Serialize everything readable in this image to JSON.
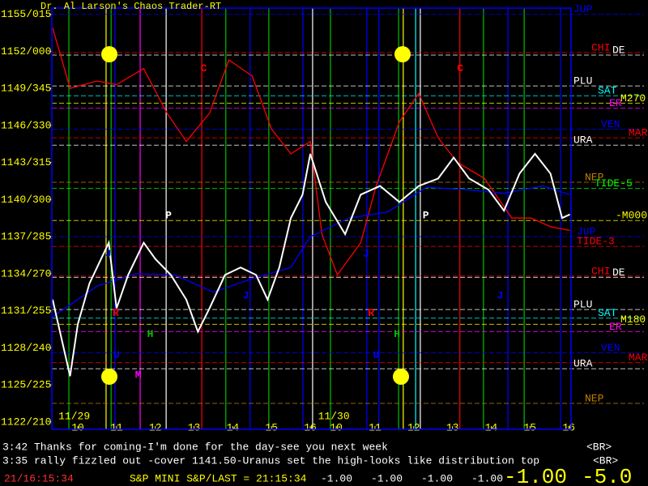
{
  "chart_data": {
    "type": "line",
    "title": "Dr. Al Larson's Chaos Trader-RT",
    "xlim": [
      9.33,
      22.73
    ],
    "xticks": [
      10,
      11,
      12,
      13,
      14,
      15,
      16,
      {
        "value": 16.67,
        "label": "10"
      },
      {
        "value": 17.67,
        "label": "11"
      },
      {
        "value": 18.67,
        "label": "12"
      },
      {
        "value": 19.67,
        "label": "13"
      },
      {
        "value": 20.67,
        "label": "14"
      },
      {
        "value": 21.67,
        "label": "15"
      },
      {
        "value": 22.67,
        "label": "16"
      }
    ],
    "ylim": [
      1121.4,
      1155.5
    ],
    "yticks": [
      {
        "value": 1155,
        "label": "1155/015"
      },
      {
        "value": 1152,
        "label": "1152/000"
      },
      {
        "value": 1149,
        "label": "1149/345"
      },
      {
        "value": 1146,
        "label": "1146/330"
      },
      {
        "value": 1143,
        "label": "1143/315"
      },
      {
        "value": 1140,
        "label": "1140/300"
      },
      {
        "value": 1137,
        "label": "1137/285"
      },
      {
        "value": 1134,
        "label": "1134/270"
      },
      {
        "value": 1131,
        "label": "1131/255"
      },
      {
        "value": 1128,
        "label": "1128/240"
      },
      {
        "value": 1125,
        "label": "1125/225"
      },
      {
        "value": 1122,
        "label": "1122/210"
      }
    ],
    "day_labels": [
      {
        "text": "11/29",
        "x": 9.5
      },
      {
        "text": "11/30",
        "x": 16.2
      }
    ],
    "series": [
      {
        "color": "#ff0000",
        "x": [
          9.35,
          9.8,
          10.5,
          11,
          11.7,
          12.3,
          12.8,
          13.4,
          13.9,
          14.5,
          15,
          15.5,
          16,
          16.3,
          16.7,
          17.3,
          17.7,
          18.3,
          18.8,
          19.3,
          19.8,
          20.5,
          21.2,
          21.7,
          22.2,
          22.7
        ],
        "values": [
          1153.9,
          1149,
          1149.6,
          1149.3,
          1150.6,
          1147,
          1144.7,
          1147,
          1151.3,
          1150,
          1145.7,
          1143.7,
          1144.7,
          1137.2,
          1133.9,
          1136.5,
          1141.1,
          1146.3,
          1148.6,
          1145,
          1143,
          1141.7,
          1138.5,
          1138.5,
          1137.8,
          1137.5
        ]
      },
      {
        "color": "#0000ff",
        "x": [
          9.35,
          10.5,
          11.5,
          12.5,
          13.5,
          14.5,
          15.5,
          16,
          17,
          18,
          19,
          20,
          21,
          22,
          22.7
        ],
        "values": [
          1130.5,
          1133,
          1134,
          1133.9,
          1132.5,
          1133.6,
          1134.5,
          1137,
          1138.5,
          1139,
          1141,
          1140.8,
          1140.5,
          1141.1,
          1140.4
        ]
      },
      {
        "color": "#ffffff",
        "x": [
          9.35,
          9.8,
          10,
          10.3,
          10.6,
          10.8,
          11,
          11.3,
          11.7,
          12,
          12.4,
          12.8,
          13.1,
          13.4,
          13.8,
          14.2,
          14.6,
          14.9,
          15.2,
          15.5,
          15.8,
          16,
          16.4,
          16.9,
          17.3,
          17.8,
          18.3,
          18.8,
          19.3,
          19.7,
          20.1,
          20.6,
          21,
          21.4,
          21.8,
          22.2,
          22.5,
          22.7
        ],
        "values": [
          1131.9,
          1125.7,
          1129.9,
          1133.2,
          1135.2,
          1136.5,
          1131.2,
          1133.9,
          1136.5,
          1135.2,
          1133.9,
          1131.9,
          1129.3,
          1131.2,
          1133.9,
          1134.5,
          1133.9,
          1131.9,
          1134.5,
          1138.5,
          1140.4,
          1143.7,
          1139.8,
          1137.2,
          1140.4,
          1141.1,
          1139.8,
          1141.1,
          1141.7,
          1143.4,
          1141.7,
          1140.8,
          1139.1,
          1142.1,
          1143.7,
          1142.1,
          1138.5,
          1138.8
        ]
      }
    ],
    "levels": [
      {
        "name": "JUP",
        "value": 1155,
        "color": "#0000ff"
      },
      {
        "name": "CHI",
        "value": 1151.9,
        "color": "#ff0000"
      },
      {
        "name": "DE",
        "value": 1151.7,
        "color": "#ffffff"
      },
      {
        "name": "PLU",
        "value": 1149.2,
        "color": "#ffffff"
      },
      {
        "name": "SAT",
        "value": 1148.4,
        "color": "#00ffff"
      },
      {
        "name": "M270",
        "value": 1147.8,
        "color": "#ffff00"
      },
      {
        "name": "ER",
        "value": 1147.4,
        "color": "#ff00ff"
      },
      {
        "name": "VEN",
        "value": 1145.7,
        "color": "#0000ff"
      },
      {
        "name": "MAR",
        "value": 1145,
        "color": "#ff0000"
      },
      {
        "name": "URA",
        "value": 1144.4,
        "color": "#ffffff"
      },
      {
        "name": "NEP",
        "value": 1141.4,
        "color": "#c08000"
      },
      {
        "name": "TIDE-5",
        "value": 1140.9,
        "color": "#00ff00"
      },
      {
        "name": "-M000",
        "value": 1138.3,
        "color": "#ffff00"
      },
      {
        "name": "JUP",
        "value": 1137,
        "color": "#0000ff"
      },
      {
        "name": "TIDE-3",
        "value": 1136.2,
        "color": "#ff0000"
      },
      {
        "name": "CHI",
        "value": 1133.8,
        "color": "#ff0000"
      },
      {
        "name": "DE",
        "value": 1133.7,
        "color": "#ffffff"
      },
      {
        "name": "PLU",
        "value": 1131.1,
        "color": "#ffffff"
      },
      {
        "name": "SAT",
        "value": 1130.4,
        "color": "#00ffff"
      },
      {
        "name": "M180",
        "value": 1129.9,
        "color": "#ffff00"
      },
      {
        "name": "ER",
        "value": 1129.3,
        "color": "#ff00ff"
      },
      {
        "name": "VEN",
        "value": 1127.6,
        "color": "#0000ff"
      },
      {
        "name": "MAR",
        "value": 1126.8,
        "color": "#ff0000"
      },
      {
        "name": "URA",
        "value": 1126.3,
        "color": "#ffffff"
      },
      {
        "name": "NEP",
        "value": 1123.5,
        "color": "#c08000"
      }
    ],
    "events": [
      {
        "x": 9.77,
        "color": "#00c000"
      },
      {
        "x": 10.73,
        "color": "#ffff00"
      },
      {
        "x": 10.86,
        "color": "#00c000"
      },
      {
        "x": 10.96,
        "color": "#0000ff"
      },
      {
        "x": 11.61,
        "color": "#ff00ff"
      },
      {
        "x": 12.28,
        "color": "#ffffff"
      },
      {
        "x": 13.2,
        "color": "#ff0000"
      },
      {
        "x": 13.82,
        "color": "#00c000"
      },
      {
        "x": 14.45,
        "color": "#0000ff"
      },
      {
        "x": 14.93,
        "color": "#00c000"
      },
      {
        "x": 15.81,
        "color": "#0000ff"
      },
      {
        "x": 16.06,
        "color": "#ffffff"
      },
      {
        "x": 16.52,
        "color": "#00c000"
      },
      {
        "x": 17.46,
        "color": "#0000ff"
      },
      {
        "x": 17.77,
        "color": "#0000ff"
      },
      {
        "x": 18.28,
        "color": "#00c000"
      },
      {
        "x": 18.4,
        "color": "#ffff00"
      },
      {
        "x": 18.72,
        "color": "#00ffff"
      },
      {
        "x": 18.84,
        "color": "#ffffff"
      },
      {
        "x": 19.86,
        "color": "#ff0000"
      },
      {
        "x": 20.47,
        "color": "#00c000"
      },
      {
        "x": 21.1,
        "color": "#0000ff"
      },
      {
        "x": 21.52,
        "color": "#00c000"
      },
      {
        "x": 22.46,
        "color": "#0000ff"
      }
    ],
    "annotations": [
      {
        "text": "C",
        "x": 13.25,
        "y": 1150.6,
        "color": "#ff0000"
      },
      {
        "text": "C",
        "x": 19.87,
        "y": 1150.6,
        "color": "#ff0000"
      },
      {
        "text": "P",
        "x": 12.34,
        "y": 1138.7,
        "color": "#ffffff"
      },
      {
        "text": "P",
        "x": 18.98,
        "y": 1138.7,
        "color": "#ffffff"
      },
      {
        "text": "J",
        "x": 10.79,
        "y": 1135.6,
        "color": "#0000ff"
      },
      {
        "text": "J",
        "x": 14.34,
        "y": 1132.2,
        "color": "#0000ff"
      },
      {
        "text": "J",
        "x": 17.44,
        "y": 1135.6,
        "color": "#0000ff"
      },
      {
        "text": "J",
        "x": 20.9,
        "y": 1132.2,
        "color": "#0000ff"
      },
      {
        "text": "R",
        "x": 10.98,
        "y": 1130.8,
        "color": "#ff0000"
      },
      {
        "text": "R",
        "x": 17.57,
        "y": 1130.8,
        "color": "#ff0000"
      },
      {
        "text": "H",
        "x": 11.87,
        "y": 1129.1,
        "color": "#00c000"
      },
      {
        "text": "H",
        "x": 18.24,
        "y": 1129.1,
        "color": "#00c000"
      },
      {
        "text": "U",
        "x": 11.0,
        "y": 1127.4,
        "color": "#0000ff"
      },
      {
        "text": "U",
        "x": 17.7,
        "y": 1127.4,
        "color": "#0000ff"
      },
      {
        "text": "M",
        "x": 11.56,
        "y": 1125.8,
        "color": "#ff00ff"
      },
      {
        "text": "M",
        "x": 18.24,
        "y": 1125.8,
        "color": "#ff00ff"
      }
    ]
  },
  "messages": [
    {
      "text": "3:42 Thanks for coming-I'm done for the day-see you next week",
      "tag": "<BR>"
    },
    {
      "text": "3:35 rally fizzled out -cover 1141.50-Uranus set the high-looks like distribution top",
      "tag": "<BR>"
    }
  ],
  "status": {
    "clock": "21/16:15:34",
    "quote": "S&P MINI S&P/LAST = 21:15:34",
    "values": [
      "-1.00",
      "-1.00",
      "-1.00",
      "-1.00"
    ],
    "big": [
      "-1.00",
      "-5.0"
    ]
  }
}
